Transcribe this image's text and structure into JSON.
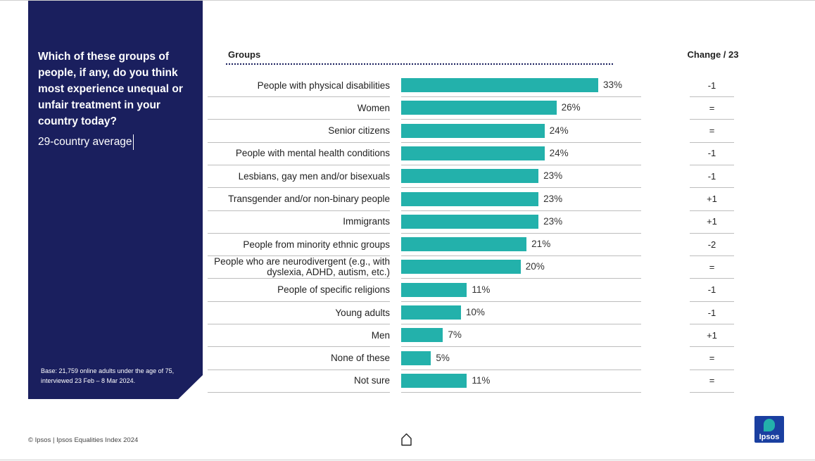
{
  "panel": {
    "question": "Which of these groups of people, if any, do you think most experience unequal or unfair treatment in your country today?",
    "subtitle": "29-country average",
    "base_note": "Base: 21,759 online adults under the age of 75, interviewed 23 Feb – 8 Mar 2024."
  },
  "header": {
    "groups_title": "Groups",
    "change_title": "Change / 23"
  },
  "colors": {
    "panel": "#1a1f5e",
    "bar": "#23b1ab",
    "logo": "#1a3fa0"
  },
  "chart_data": {
    "type": "bar",
    "orientation": "horizontal",
    "categories": [
      "People with physical disabilities",
      "Women",
      "Senior citizens",
      "People with mental health conditions",
      "Lesbians, gay men and/or bisexuals",
      "Transgender and/or non-binary people",
      "Immigrants",
      "People from minority ethnic groups",
      "People who are neurodivergent (e.g., with dyslexia, ADHD, autism, etc.)",
      "People of specific religions",
      "Young adults",
      "Men",
      "None of these",
      "Not sure"
    ],
    "values": [
      33,
      26,
      24,
      24,
      23,
      23,
      23,
      21,
      20,
      11,
      10,
      7,
      5,
      11
    ],
    "value_labels": [
      "33%",
      "26%",
      "24%",
      "24%",
      "23%",
      "23%",
      "23%",
      "21%",
      "20%",
      "11%",
      "10%",
      "7%",
      "5%",
      "11%"
    ],
    "change": [
      "-1",
      "=",
      "=",
      "-1",
      "-1",
      "+1",
      "+1",
      "-2",
      "=",
      "-1",
      "-1",
      "+1",
      "=",
      "="
    ],
    "xlim": [
      0,
      40
    ],
    "grid": false,
    "legend": "none"
  },
  "footer": {
    "copyright": "© Ipsos | Ipsos Equalities Index 2024",
    "logo_text": "Ipsos",
    "home_icon": "home-icon"
  }
}
